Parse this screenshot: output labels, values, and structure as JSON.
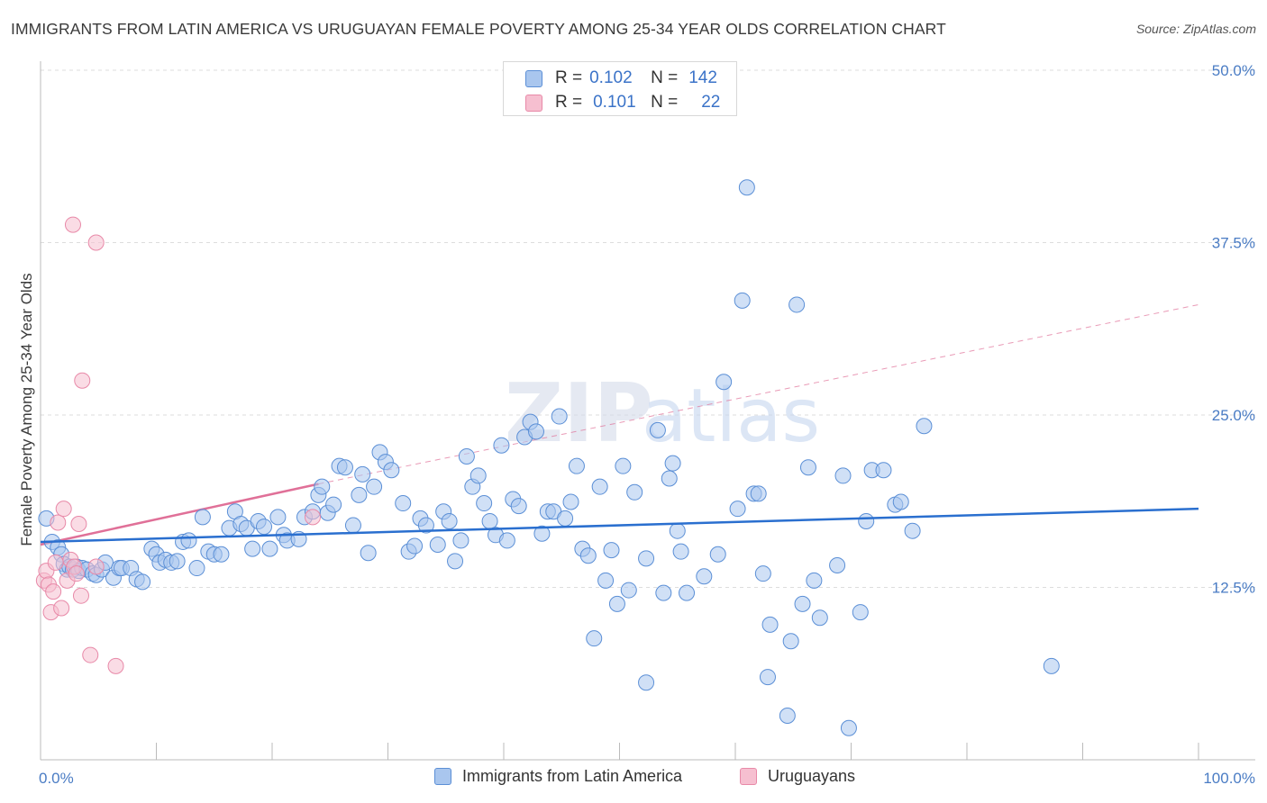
{
  "title": "IMMIGRANTS FROM LATIN AMERICA VS URUGUAYAN FEMALE POVERTY AMONG 25-34 YEAR OLDS CORRELATION CHART",
  "source": "Source: ZipAtlas.com",
  "watermark": "ZIPatlas",
  "colors": {
    "blue_fill": "#a9c6ee",
    "blue_stroke": "#5b8fd6",
    "blue_line": "#2a6fcf",
    "pink_fill": "#f6bfd0",
    "pink_stroke": "#e889a8",
    "pink_line": "#e07098",
    "tick_text": "#4a7cc4",
    "grid": "#dddddd"
  },
  "legend": {
    "rows": [
      {
        "r_label": "R =",
        "r_value": "0.102",
        "n_label": "N =",
        "n_value": "142",
        "color": "blue"
      },
      {
        "r_label": "R =",
        "r_value": "0.101",
        "n_label": "N =",
        "n_value": "22",
        "color": "pink"
      }
    ]
  },
  "bottom_legend": {
    "items": [
      {
        "label": "Immigrants from Latin America",
        "color": "blue"
      },
      {
        "label": "Uruguayans",
        "color": "pink"
      }
    ]
  },
  "chart_data": {
    "type": "scatter",
    "title": "IMMIGRANTS FROM LATIN AMERICA VS URUGUAYAN FEMALE POVERTY AMONG 25-34 YEAR OLDS CORRELATION CHART",
    "xlabel": "",
    "ylabel": "Female Poverty Among 25-34 Year Olds",
    "xlim": [
      0,
      100
    ],
    "ylim": [
      0,
      50
    ],
    "x_tick_labels": {
      "min": "0.0%",
      "max": "100.0%"
    },
    "y_ticks": [
      {
        "value": 12.5,
        "label": "12.5%"
      },
      {
        "value": 25.0,
        "label": "25.0%"
      },
      {
        "value": 37.5,
        "label": "37.5%"
      },
      {
        "value": 50.0,
        "label": "50.0%"
      }
    ],
    "grid": true,
    "series": [
      {
        "name": "Immigrants from Latin America",
        "color": "blue",
        "R": 0.102,
        "N": 142,
        "trend": {
          "x": [
            0,
            100
          ],
          "y": [
            15.8,
            18.2
          ],
          "style": "solid"
        },
        "points": [
          [
            0.5,
            17.5
          ],
          [
            1.0,
            15.8
          ],
          [
            1.5,
            15.4
          ],
          [
            1.8,
            14.9
          ],
          [
            2.0,
            14.2
          ],
          [
            2.3,
            13.8
          ],
          [
            2.5,
            14.0
          ],
          [
            2.8,
            13.8
          ],
          [
            3.1,
            14.0
          ],
          [
            3.3,
            13.7
          ],
          [
            3.6,
            13.9
          ],
          [
            4.0,
            13.8
          ],
          [
            4.5,
            13.5
          ],
          [
            4.8,
            13.4
          ],
          [
            5.3,
            13.8
          ],
          [
            5.6,
            14.3
          ],
          [
            6.3,
            13.2
          ],
          [
            6.8,
            13.9
          ],
          [
            7.0,
            13.9
          ],
          [
            7.8,
            13.9
          ],
          [
            8.3,
            13.1
          ],
          [
            8.8,
            12.9
          ],
          [
            9.6,
            15.3
          ],
          [
            10.0,
            14.9
          ],
          [
            10.3,
            14.3
          ],
          [
            10.8,
            14.5
          ],
          [
            11.3,
            14.3
          ],
          [
            11.8,
            14.4
          ],
          [
            12.3,
            15.8
          ],
          [
            12.8,
            15.9
          ],
          [
            13.5,
            13.9
          ],
          [
            14.0,
            17.6
          ],
          [
            14.5,
            15.1
          ],
          [
            15.0,
            14.9
          ],
          [
            15.6,
            14.9
          ],
          [
            16.3,
            16.8
          ],
          [
            16.8,
            18.0
          ],
          [
            17.3,
            17.1
          ],
          [
            17.8,
            16.8
          ],
          [
            18.3,
            15.3
          ],
          [
            18.8,
            17.3
          ],
          [
            19.3,
            16.9
          ],
          [
            19.8,
            15.3
          ],
          [
            20.5,
            17.6
          ],
          [
            21.0,
            16.3
          ],
          [
            21.3,
            15.9
          ],
          [
            22.3,
            16.0
          ],
          [
            22.8,
            17.6
          ],
          [
            23.5,
            18.0
          ],
          [
            24.0,
            19.2
          ],
          [
            24.3,
            19.8
          ],
          [
            24.8,
            17.9
          ],
          [
            25.3,
            18.5
          ],
          [
            25.8,
            21.3
          ],
          [
            26.3,
            21.2
          ],
          [
            27.0,
            17.0
          ],
          [
            27.5,
            19.2
          ],
          [
            27.8,
            20.7
          ],
          [
            28.3,
            15.0
          ],
          [
            28.8,
            19.8
          ],
          [
            29.3,
            22.3
          ],
          [
            29.8,
            21.6
          ],
          [
            30.3,
            21.0
          ],
          [
            31.3,
            18.6
          ],
          [
            31.8,
            15.1
          ],
          [
            32.3,
            15.5
          ],
          [
            32.8,
            17.5
          ],
          [
            33.3,
            17.0
          ],
          [
            34.3,
            15.6
          ],
          [
            34.8,
            18.0
          ],
          [
            35.3,
            17.3
          ],
          [
            35.8,
            14.4
          ],
          [
            36.3,
            15.9
          ],
          [
            36.8,
            22.0
          ],
          [
            37.3,
            19.8
          ],
          [
            37.8,
            20.6
          ],
          [
            38.3,
            18.6
          ],
          [
            38.8,
            17.3
          ],
          [
            39.3,
            16.3
          ],
          [
            39.8,
            22.8
          ],
          [
            40.3,
            15.9
          ],
          [
            40.8,
            18.9
          ],
          [
            41.3,
            18.4
          ],
          [
            41.8,
            23.4
          ],
          [
            42.3,
            24.5
          ],
          [
            42.8,
            23.8
          ],
          [
            43.3,
            16.4
          ],
          [
            43.8,
            18.0
          ],
          [
            44.3,
            18.0
          ],
          [
            44.8,
            24.9
          ],
          [
            45.3,
            17.5
          ],
          [
            45.8,
            18.7
          ],
          [
            46.3,
            21.3
          ],
          [
            46.8,
            15.3
          ],
          [
            47.3,
            14.8
          ],
          [
            47.8,
            8.8
          ],
          [
            48.3,
            19.8
          ],
          [
            48.8,
            13.0
          ],
          [
            49.3,
            15.2
          ],
          [
            49.8,
            11.3
          ],
          [
            50.3,
            21.3
          ],
          [
            50.8,
            12.3
          ],
          [
            51.3,
            19.4
          ],
          [
            52.3,
            5.6
          ],
          [
            52.3,
            14.6
          ],
          [
            53.3,
            23.9
          ],
          [
            53.8,
            12.1
          ],
          [
            54.3,
            20.4
          ],
          [
            54.6,
            21.5
          ],
          [
            55.0,
            16.6
          ],
          [
            55.3,
            15.1
          ],
          [
            55.8,
            12.1
          ],
          [
            57.3,
            13.3
          ],
          [
            58.5,
            14.9
          ],
          [
            59.0,
            27.4
          ],
          [
            60.2,
            18.2
          ],
          [
            60.6,
            33.3
          ],
          [
            61.0,
            41.5
          ],
          [
            61.6,
            19.3
          ],
          [
            62.0,
            19.3
          ],
          [
            62.4,
            13.5
          ],
          [
            62.8,
            6.0
          ],
          [
            63.0,
            9.8
          ],
          [
            64.5,
            3.2
          ],
          [
            64.8,
            8.6
          ],
          [
            65.3,
            33.0
          ],
          [
            65.8,
            11.3
          ],
          [
            66.3,
            21.2
          ],
          [
            66.8,
            13.0
          ],
          [
            67.3,
            10.3
          ],
          [
            68.8,
            14.1
          ],
          [
            69.3,
            20.6
          ],
          [
            69.8,
            2.3
          ],
          [
            70.8,
            10.7
          ],
          [
            71.3,
            17.3
          ],
          [
            71.8,
            21.0
          ],
          [
            72.8,
            21.0
          ],
          [
            73.8,
            18.5
          ],
          [
            74.3,
            18.7
          ],
          [
            75.3,
            16.6
          ],
          [
            76.3,
            24.2
          ],
          [
            87.3,
            6.8
          ]
        ]
      },
      {
        "name": "Uruguayans",
        "color": "pink",
        "R": 0.101,
        "N": 22,
        "trend": {
          "x": [
            0,
            24
          ],
          "y": [
            15.6,
            20.0
          ],
          "style": "solid",
          "extension": {
            "x": [
              24,
              100
            ],
            "y": [
              20.0,
              33.0
            ],
            "style": "dashed"
          }
        },
        "points": [
          [
            0.3,
            13.0
          ],
          [
            0.5,
            13.7
          ],
          [
            0.7,
            12.7
          ],
          [
            0.9,
            10.7
          ],
          [
            1.1,
            12.2
          ],
          [
            1.3,
            14.3
          ],
          [
            1.5,
            17.2
          ],
          [
            1.8,
            11.0
          ],
          [
            2.0,
            18.2
          ],
          [
            2.3,
            13.0
          ],
          [
            2.6,
            14.5
          ],
          [
            2.9,
            14.0
          ],
          [
            3.1,
            13.5
          ],
          [
            2.8,
            38.8
          ],
          [
            3.3,
            17.1
          ],
          [
            3.5,
            11.9
          ],
          [
            3.6,
            27.5
          ],
          [
            4.3,
            7.6
          ],
          [
            4.8,
            14.0
          ],
          [
            4.8,
            37.5
          ],
          [
            6.5,
            6.8
          ],
          [
            23.5,
            17.6
          ]
        ]
      }
    ]
  }
}
